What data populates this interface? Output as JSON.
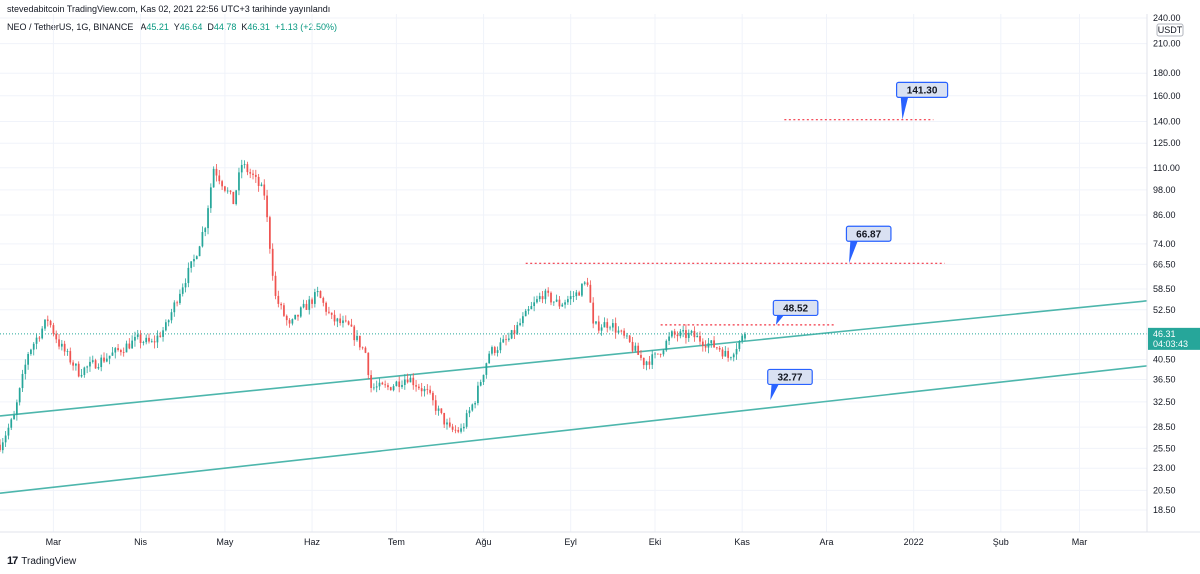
{
  "header": {
    "publisher": "stevedabitcoin TradingView.com, Kas 02, 2021 22:56 UTC+3 tarihinde yayınlandı"
  },
  "symbol_bar": {
    "symbol": "NEO / TetherUS, 1G, BINANCE",
    "open_label": "A",
    "open": "45.21",
    "high_label": "Y",
    "high": "46.64",
    "low_label": "D",
    "low": "44.78",
    "close_label": "K",
    "close": "46.31",
    "change": "+1.13 (+2.50%)"
  },
  "footer": {
    "brand": "TradingView",
    "logo_text": "17"
  },
  "colors": {
    "up": "#26a69a",
    "down": "#ef5350",
    "trendline": "#4db6ac",
    "level": "#f23645",
    "callout_bg": "#d9e1f2",
    "callout_border": "#2962ff"
  },
  "chart_data": {
    "type": "candlestick",
    "symbol": "NEO / TetherUS",
    "timeframe": "1G",
    "exchange": "BINANCE",
    "y_axis": {
      "scale": "log",
      "unit": "USDT",
      "range": [
        16.5,
        245
      ],
      "ticks": [
        "18.50",
        "20.50",
        "23.00",
        "25.50",
        "28.50",
        "32.50",
        "36.50",
        "40.50",
        "46.31",
        "52.50",
        "58.50",
        "66.50",
        "74.00",
        "86.00",
        "98.00",
        "110.00",
        "125.00",
        "140.00",
        "160.00",
        "180.00",
        "210.00",
        "240.00"
      ],
      "current_price": "46.31",
      "countdown": "04:03:43"
    },
    "x_axis": {
      "labels": [
        "Mar",
        "Nis",
        "May",
        "Haz",
        "Tem",
        "Ağu",
        "Eyl",
        "Eki",
        "Kas",
        "Ara",
        "2022",
        "Şub",
        "Mar"
      ],
      "range": [
        "2021-02-10",
        "2022-03-25"
      ]
    },
    "price_path": [
      [
        "2021-02-10",
        26
      ],
      [
        "2021-02-15",
        30
      ],
      [
        "2021-02-20",
        42
      ],
      [
        "2021-02-27",
        50
      ],
      [
        "2021-03-03",
        44
      ],
      [
        "2021-03-10",
        38
      ],
      [
        "2021-03-20",
        41
      ],
      [
        "2021-03-31",
        45
      ],
      [
        "2021-04-05",
        44
      ],
      [
        "2021-04-10",
        48
      ],
      [
        "2021-04-15",
        58
      ],
      [
        "2021-04-20",
        68
      ],
      [
        "2021-04-24",
        82
      ],
      [
        "2021-04-27",
        110
      ],
      [
        "2021-04-30",
        102
      ],
      [
        "2021-05-04",
        92
      ],
      [
        "2021-05-07",
        112
      ],
      [
        "2021-05-11",
        105
      ],
      [
        "2021-05-15",
        96
      ],
      [
        "2021-05-19",
        56
      ],
      [
        "2021-05-24",
        48
      ],
      [
        "2021-05-28",
        52
      ],
      [
        "2021-06-03",
        57
      ],
      [
        "2021-06-08",
        50
      ],
      [
        "2021-06-14",
        48
      ],
      [
        "2021-06-20",
        42
      ],
      [
        "2021-06-22",
        35
      ],
      [
        "2021-06-28",
        35
      ],
      [
        "2021-07-05",
        37
      ],
      [
        "2021-07-12",
        34
      ],
      [
        "2021-07-20",
        28
      ],
      [
        "2021-07-24",
        28
      ],
      [
        "2021-07-29",
        33
      ],
      [
        "2021-08-03",
        42
      ],
      [
        "2021-08-10",
        45
      ],
      [
        "2021-08-17",
        52
      ],
      [
        "2021-08-22",
        57
      ],
      [
        "2021-08-28",
        54
      ],
      [
        "2021-09-03",
        57
      ],
      [
        "2021-09-07",
        61
      ],
      [
        "2021-09-09",
        48
      ],
      [
        "2021-09-15",
        49
      ],
      [
        "2021-09-22",
        44
      ],
      [
        "2021-09-27",
        40
      ],
      [
        "2021-10-01",
        41
      ],
      [
        "2021-10-07",
        46
      ],
      [
        "2021-10-14",
        46
      ],
      [
        "2021-10-20",
        44
      ],
      [
        "2021-10-24",
        43
      ],
      [
        "2021-10-27",
        41
      ],
      [
        "2021-11-02",
        46.31
      ]
    ],
    "trendlines": [
      {
        "from": [
          "2021-02-10",
          30.2
        ],
        "to": [
          "2022-03-25",
          55.0
        ]
      },
      {
        "from": [
          "2021-02-10",
          20.2
        ],
        "to": [
          "2022-03-25",
          39.2
        ]
      }
    ],
    "levels": [
      {
        "value": 141.3,
        "from": "2021-11-16",
        "to": "2022-01-08"
      },
      {
        "value": 66.87,
        "from": "2021-08-16",
        "to": "2022-01-12"
      },
      {
        "value": 48.52,
        "from": "2021-10-03",
        "to": "2021-12-04"
      }
    ],
    "callouts": [
      {
        "label": "141.30",
        "anchor": [
          "2021-12-28",
          141.3
        ],
        "box": [
          "2022-01-04",
          165
        ]
      },
      {
        "label": "66.87",
        "anchor": [
          "2021-12-09",
          66.87
        ],
        "box": [
          "2021-12-16",
          78
        ]
      },
      {
        "label": "48.52",
        "anchor": [
          "2021-11-13",
          48.52
        ],
        "box": [
          "2021-11-20",
          53
        ]
      },
      {
        "label": "32.77",
        "anchor": [
          "2021-11-11",
          32.77
        ],
        "box": [
          "2021-11-18",
          37
        ]
      }
    ]
  }
}
